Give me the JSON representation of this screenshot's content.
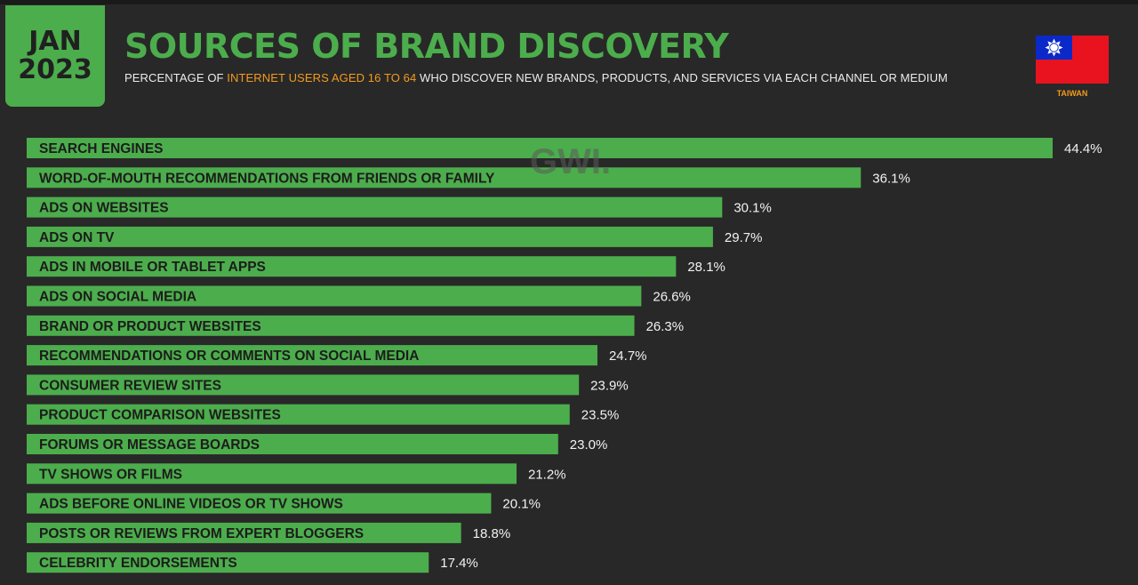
{
  "header": {
    "date_line1": "JAN",
    "date_line2": "2023",
    "title": "SOURCES OF BRAND DISCOVERY",
    "subtitle_before": "PERCENTAGE OF ",
    "subtitle_highlight": "INTERNET USERS AGED 16 TO 64",
    "subtitle_after": " WHO DISCOVER NEW BRANDS, PRODUCTS, AND SERVICES VIA EACH CHANNEL OR MEDIUM",
    "country": "TAIWAN",
    "watermark": "GWI."
  },
  "colors": {
    "background": "#282828",
    "bar": "#4cad4c",
    "accent": "#f39a1e",
    "flag_red": "#e8131f",
    "flag_blue": "#0b29c9"
  },
  "chart_data": {
    "type": "bar",
    "orientation": "horizontal",
    "title": "SOURCES OF BRAND DISCOVERY",
    "categories": [
      "SEARCH ENGINES",
      "WORD-OF-MOUTH RECOMMENDATIONS FROM FRIENDS OR FAMILY",
      "ADS ON WEBSITES",
      "ADS ON TV",
      "ADS IN MOBILE OR TABLET APPS",
      "ADS ON SOCIAL MEDIA",
      "BRAND OR PRODUCT WEBSITES",
      "RECOMMENDATIONS OR COMMENTS ON SOCIAL MEDIA",
      "CONSUMER REVIEW SITES",
      "PRODUCT COMPARISON WEBSITES",
      "FORUMS OR MESSAGE BOARDS",
      "TV SHOWS OR FILMS",
      "ADS BEFORE ONLINE VIDEOS OR TV SHOWS",
      "POSTS OR REVIEWS FROM EXPERT BLOGGERS",
      "CELEBRITY ENDORSEMENTS"
    ],
    "values": [
      44.4,
      36.1,
      30.1,
      29.7,
      28.1,
      26.6,
      26.3,
      24.7,
      23.9,
      23.5,
      23.0,
      21.2,
      20.1,
      18.8,
      17.4
    ],
    "value_labels": [
      "44.4%",
      "36.1%",
      "30.1%",
      "29.7%",
      "28.1%",
      "26.6%",
      "26.3%",
      "24.7%",
      "23.9%",
      "23.5%",
      "23.0%",
      "21.2%",
      "20.1%",
      "18.8%",
      "17.4%"
    ],
    "unit": "%",
    "xlim": [
      0,
      44.4
    ],
    "grid": false,
    "legend": "none"
  }
}
